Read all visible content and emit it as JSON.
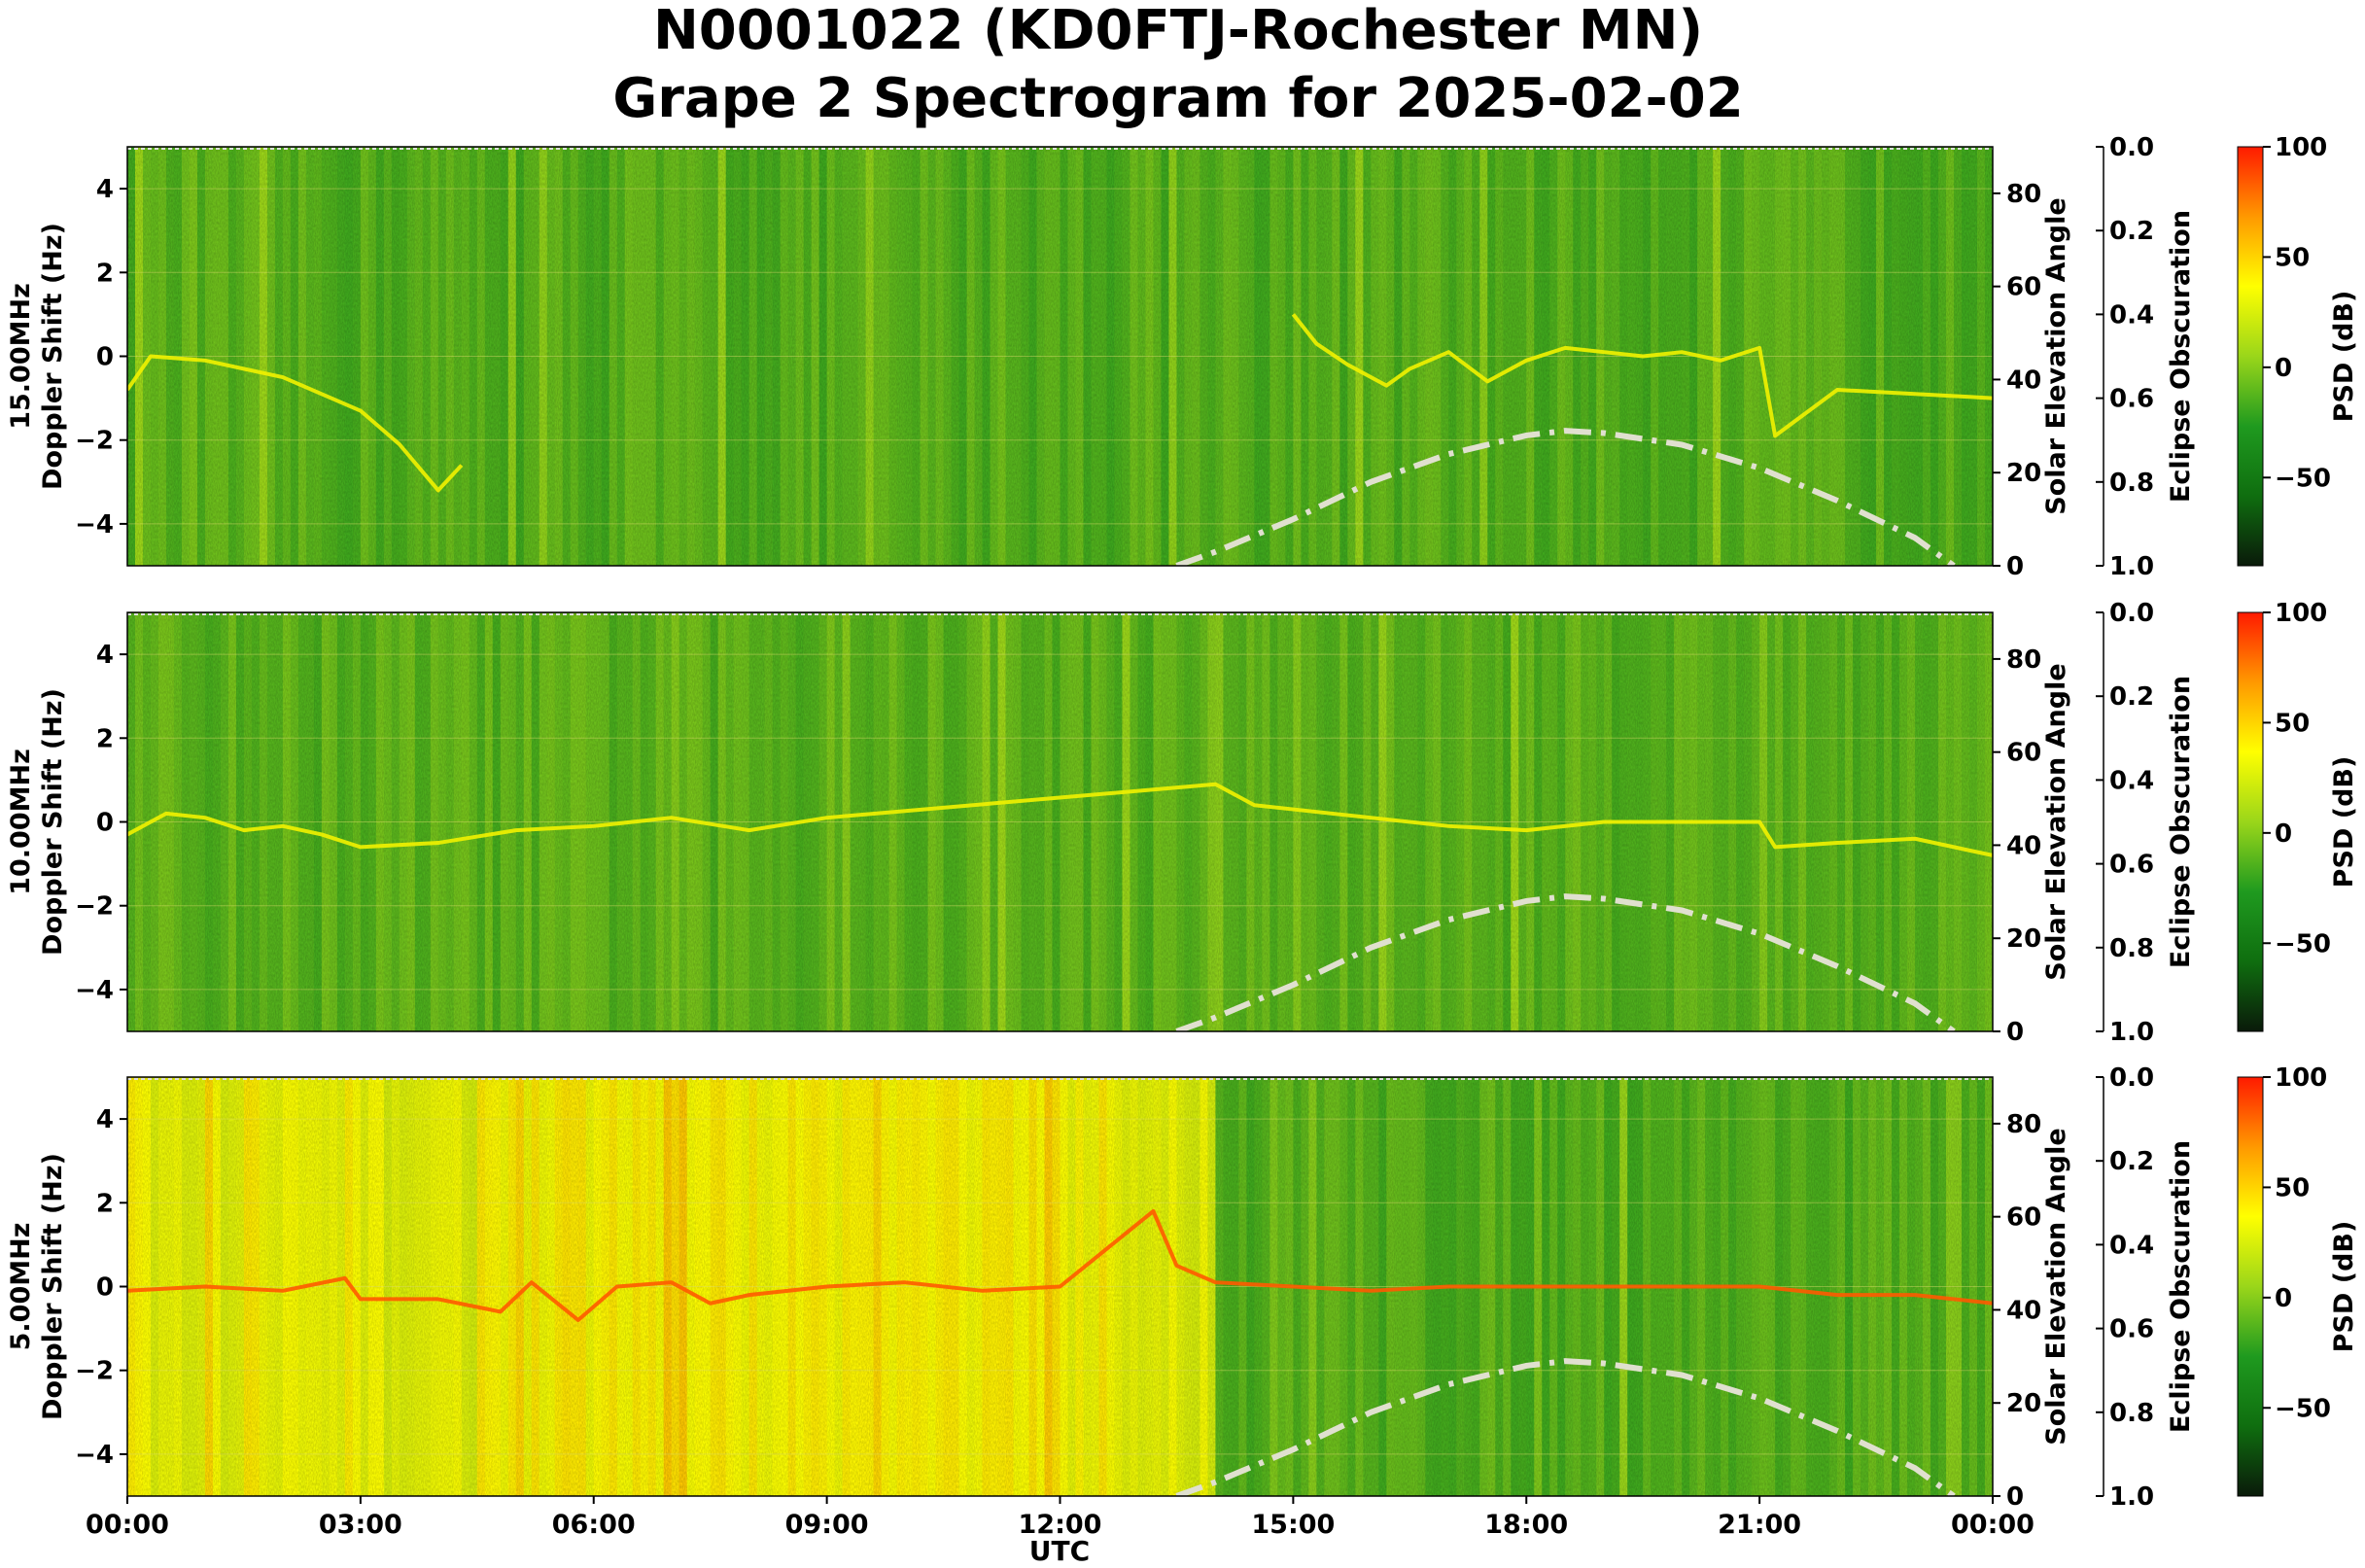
{
  "title_line1": "N0001022 (KD0FTJ-Rochester MN)",
  "title_line2": "Grape 2 Spectrogram for 2025-02-02",
  "chart_data": {
    "type": "heatmap",
    "title": "N0001022 (KD0FTJ-Rochester MN)\nGrape 2 Spectrogram for 2025-02-02",
    "xlabel": "UTC",
    "x_ticks": [
      "00:00",
      "03:00",
      "06:00",
      "09:00",
      "12:00",
      "15:00",
      "18:00",
      "21:00",
      "00:00"
    ],
    "x_range_hours": [
      0,
      24
    ],
    "ylabel_suffix": "Doppler Shift (Hz)",
    "ylim": [
      -5,
      5
    ],
    "y_ticks": [
      4,
      2,
      0,
      -2,
      -4
    ],
    "y2_label": "Solar Elevation Angle",
    "y2_lim": [
      0,
      90
    ],
    "y2_ticks": [
      0,
      20,
      40,
      60,
      80
    ],
    "y3_label": "Eclipse Obscuration",
    "y3_lim": [
      1.0,
      0.0
    ],
    "y3_ticks": [
      "0.0",
      "0.2",
      "0.4",
      "0.6",
      "0.8",
      "1.0"
    ],
    "colorbar": {
      "label": "PSD (dB)",
      "range": [
        -90,
        100
      ],
      "ticks": [
        100,
        50,
        0,
        -50
      ],
      "tick_labels": [
        "100",
        "50",
        "0",
        "−50"
      ],
      "colormap": [
        "#0a1a0a",
        "#0f6e0f",
        "#1f9a1f",
        "#9ad61a",
        "#ffff00",
        "#ff9900",
        "#ff1a00"
      ]
    },
    "grid": true,
    "subplots": [
      {
        "freq_label": "15.00MHz",
        "baseline_dB": -12,
        "doppler_trace": {
          "x_hours": [
            0,
            0.3,
            1,
            2,
            3,
            3.5,
            4,
            4.3,
            13.3,
            14,
            14.5,
            15,
            15.3,
            15.7,
            16.2,
            16.5,
            17,
            17.5,
            18,
            18.5,
            19,
            19.5,
            20,
            20.5,
            21,
            21.2,
            22,
            23,
            24
          ],
          "y_hz": [
            -0.8,
            0,
            -0.1,
            -0.5,
            -1.3,
            -2.1,
            -3.2,
            -2.6,
            null,
            null,
            null,
            1.0,
            0.3,
            -0.2,
            -0.7,
            -0.3,
            0.1,
            -0.6,
            -0.1,
            0.2,
            0.1,
            0.0,
            0.1,
            -0.1,
            0.2,
            -1.9,
            -0.8,
            -0.9,
            -1.0
          ]
        },
        "solar_elevation": {
          "x_hours": [
            13.5,
            14,
            15,
            16,
            17,
            18,
            18.5,
            19,
            20,
            21,
            22,
            23,
            23.5
          ],
          "deg": [
            0,
            3,
            10,
            18,
            24,
            28,
            29,
            28.5,
            26,
            21,
            14,
            6,
            0
          ]
        }
      },
      {
        "freq_label": "10.00MHz",
        "baseline_dB": -10,
        "doppler_trace": {
          "x_hours": [
            0,
            0.5,
            1,
            1.5,
            2,
            2.5,
            3,
            4,
            5,
            6,
            7,
            8,
            9,
            14,
            14.5,
            15,
            16,
            17,
            18,
            19,
            20,
            21,
            21.2,
            22,
            23,
            24
          ],
          "y_hz": [
            -0.3,
            0.2,
            0.1,
            -0.2,
            -0.1,
            -0.3,
            -0.6,
            -0.5,
            -0.2,
            -0.1,
            0.1,
            -0.2,
            0.1,
            0.9,
            0.4,
            0.3,
            0.1,
            -0.1,
            -0.2,
            0.0,
            0.0,
            0.0,
            -0.6,
            -0.5,
            -0.4,
            -0.8
          ]
        },
        "solar_elevation": {
          "x_hours": [
            13.5,
            14,
            15,
            16,
            17,
            18,
            18.5,
            19,
            20,
            21,
            22,
            23,
            23.5
          ],
          "deg": [
            0,
            3,
            10,
            18,
            24,
            28,
            29,
            28.5,
            26,
            21,
            14,
            6,
            0
          ]
        }
      },
      {
        "freq_label": "5.00MHz",
        "baseline_dB": 30,
        "doppler_trace": {
          "x_hours": [
            0,
            1,
            2,
            2.8,
            3,
            4,
            4.8,
            5.2,
            5.8,
            6.3,
            7,
            7.5,
            8,
            9,
            10,
            11,
            12,
            13.2,
            13.5,
            14,
            15,
            16,
            17,
            18,
            19,
            20,
            21,
            22,
            23,
            24
          ],
          "y_hz": [
            -0.1,
            0.0,
            -0.1,
            0.2,
            -0.3,
            -0.3,
            -0.6,
            0.1,
            -0.8,
            0.0,
            0.1,
            -0.4,
            -0.2,
            0.0,
            0.1,
            -0.1,
            0.0,
            1.8,
            0.5,
            0.1,
            0.0,
            -0.1,
            0.0,
            0.0,
            0.0,
            0.0,
            0.0,
            -0.2,
            -0.2,
            -0.4
          ]
        },
        "solar_elevation": {
          "x_hours": [
            13.5,
            14,
            15,
            16,
            17,
            18,
            18.5,
            19,
            20,
            21,
            22,
            23,
            23.5
          ],
          "deg": [
            0,
            3,
            10,
            18,
            24,
            28,
            29,
            28.5,
            26,
            21,
            14,
            6,
            0
          ]
        }
      }
    ]
  }
}
